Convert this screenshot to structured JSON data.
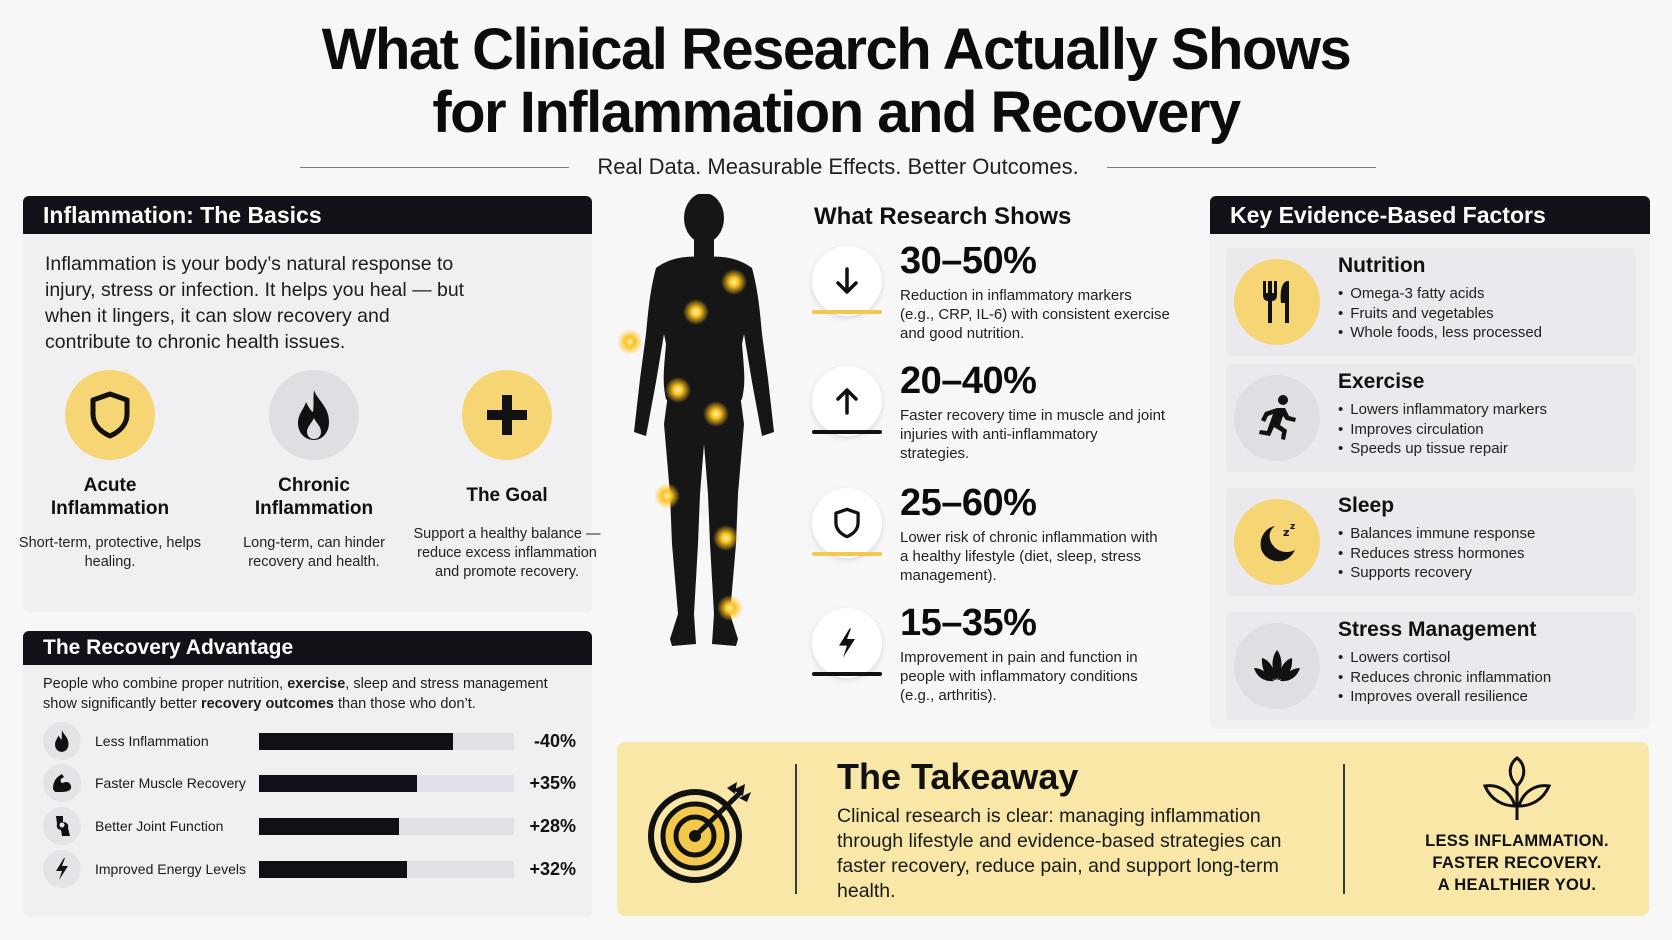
{
  "header": {
    "title_line1": "What Clinical Research Actually  Shows",
    "title_line2": "for Inflammation and Recovery",
    "subtitle": "Real Data. Measurable Effects. Better Outcomes."
  },
  "basics": {
    "heading": "Inflammation: The Basics",
    "text": "Inflammation is your body’s natural response to injury, stress or infection. It helps you heal — but when it lingers, it can slow recovery and contribute to chronic health issues.",
    "types": [
      {
        "name_line1": "Acute",
        "name_line2": "Inflammation",
        "desc": "Short-term, protective, helps healing.",
        "icon": "shield-icon"
      },
      {
        "name_line1": "Chronic",
        "name_line2": "Inflammation",
        "desc": "Long-term, can hinder recovery and health.",
        "icon": "flame-icon"
      },
      {
        "name_line1": "The Goal",
        "name_line2": "",
        "desc": "Support a healthy balance — reduce excess inflammation and promote recovery.",
        "icon": "plus-icon"
      }
    ]
  },
  "recovery": {
    "heading": "The Recovery Advantage",
    "text_part1": "People who combine proper nutrition, ",
    "text_bold1": "exercise",
    "text_part2": ", sleep and stress management show significantly better ",
    "text_bold2": "recovery outcomes",
    "text_part3": " than those who don’t.",
    "bars": [
      {
        "label": "Less Inflammation",
        "value": "-40%",
        "fill": 0.76,
        "icon": "flame-icon"
      },
      {
        "label": "Faster Muscle Recovery",
        "value": "+35%",
        "fill": 0.62,
        "icon": "muscle-icon"
      },
      {
        "label": "Better Joint Function",
        "value": "+28%",
        "fill": 0.55,
        "icon": "joint-icon"
      },
      {
        "label": "Improved Energy Levels",
        "value": "+32%",
        "fill": 0.58,
        "icon": "lightning-icon"
      }
    ]
  },
  "research": {
    "heading": "What Research Shows",
    "stats": [
      {
        "pct": "30–50%",
        "desc": "Reduction in inflammatory markers (e.g., CRP, IL-6) with consistent exercise and good nutrition.",
        "icon": "arrow-down-icon",
        "accent": "#f2c94c"
      },
      {
        "pct": "20–40%",
        "desc": "Faster recovery time in muscle and joint injuries with anti-inflammatory strategies.",
        "icon": "arrow-up-icon",
        "accent": "#111111"
      },
      {
        "pct": "25–60%",
        "desc": "Lower risk of chronic inflammation with a healthy lifestyle (diet, sleep, stress management).",
        "icon": "shield-icon",
        "accent": "#f2c94c"
      },
      {
        "pct": "15–35%",
        "desc": "Improvement in pain and function in people with inflammatory conditions (e.g., arthritis).",
        "icon": "lightning-icon",
        "accent": "#111111"
      }
    ]
  },
  "factors": {
    "heading": "Key Evidence-Based Factors",
    "items": [
      {
        "name": "Nutrition",
        "bullets": [
          "Omega-3 fatty acids",
          "Fruits and vegetables",
          "Whole foods, less processed"
        ],
        "icon": "fork-knife-icon"
      },
      {
        "name": "Exercise",
        "bullets": [
          "Lowers inflammatory markers",
          "Improves circulation",
          "Speeds up tissue repair"
        ],
        "icon": "runner-icon"
      },
      {
        "name": "Sleep",
        "bullets": [
          "Balances immune response",
          "Reduces stress hormones",
          "Supports recovery"
        ],
        "icon": "moon-icon"
      },
      {
        "name": "Stress Management",
        "bullets": [
          "Lowers cortisol",
          "Reduces chronic inflammation",
          "Improves overall resilience"
        ],
        "icon": "lotus-icon"
      }
    ]
  },
  "takeaway": {
    "title": "The Takeaway",
    "text": "Clinical research is clear: managing inflammation through lifestyle and evidence-based strategies can faster recovery, reduce pain, and support long-term health.",
    "right_line1": "LESS INFLAMMATION.",
    "right_line2": "FASTER RECOVERY.",
    "right_line3": "A HEALTHIER YOU.",
    "icons": [
      "target-icon",
      "sprout-icon"
    ]
  },
  "colors": {
    "accent_yellow": "#f6d574",
    "dark": "#111218",
    "takeaway_bg": "#f8e7a6",
    "glow": "#ffc21a"
  }
}
